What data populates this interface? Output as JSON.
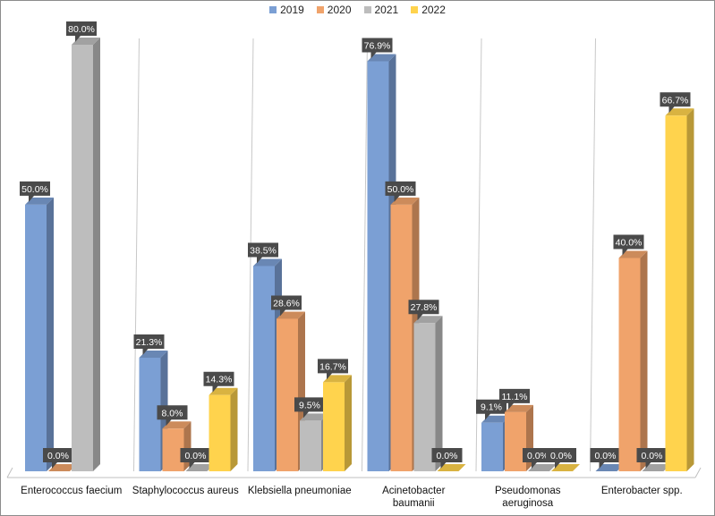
{
  "chart_data": {
    "type": "bar",
    "title": "",
    "xlabel": "",
    "ylabel": "",
    "ylim": [
      0,
      80
    ],
    "grid": false,
    "legend_position": "top",
    "categories": [
      [
        "Enterococcus faecium"
      ],
      [
        "Staphylococcus aureus"
      ],
      [
        "Klebsiella pneumoniae"
      ],
      [
        "Acinetobacter",
        "baumanii"
      ],
      [
        "Pseudomonas",
        "aeruginosa"
      ],
      [
        "Enterobacter spp."
      ]
    ],
    "series": [
      {
        "name": "2019",
        "color": "#7b9fd4",
        "values": [
          50.0,
          21.3,
          38.5,
          76.9,
          9.1,
          0.0
        ],
        "labels": [
          "50.0%",
          "21.3%",
          "38.5%",
          "76.9%",
          "9.1%",
          "0.0%"
        ]
      },
      {
        "name": "2020",
        "color": "#f0a36b",
        "values": [
          0.0,
          8.0,
          28.6,
          50.0,
          11.1,
          40.0
        ],
        "labels": [
          "0.0%",
          "8.0%",
          "28.6%",
          "50.0%",
          "11.1%",
          "40.0%"
        ]
      },
      {
        "name": "2021",
        "color": "#bdbdbd",
        "values": [
          80.0,
          0.0,
          9.5,
          27.8,
          0.0,
          0.0
        ],
        "labels": [
          "80.0%",
          "0.0%",
          "9.5%",
          "27.8%",
          "0.0%",
          "0.0%"
        ]
      },
      {
        "name": "2022",
        "color": "#ffd34d",
        "values": [
          null,
          14.3,
          16.7,
          0.0,
          0.0,
          66.7
        ],
        "labels": [
          "",
          "14.3%",
          "16.7%",
          "0.0%",
          "0.0%",
          "66.7%"
        ]
      }
    ]
  }
}
